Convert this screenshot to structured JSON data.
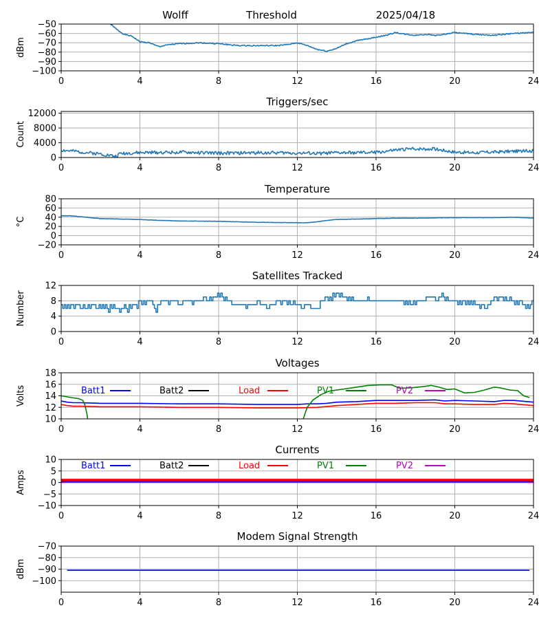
{
  "header": {
    "station": "Wolff",
    "label": "Threshold",
    "date": "2025/04/18"
  },
  "colors": {
    "series_blue": "#1f77b4",
    "batt1": "#0000ff",
    "batt2": "#000000",
    "load": "#ff0000",
    "pv1": "#008000",
    "pv2": "#bf00bf",
    "grid": "#b0b0b0"
  },
  "chart_data": [
    {
      "type": "line",
      "title": "",
      "xlabel": "",
      "ylabel": "dBm",
      "xlim": [
        0,
        24
      ],
      "ylim": [
        -100,
        -50
      ],
      "xticks": [
        0,
        4,
        8,
        12,
        16,
        20,
        24
      ],
      "yticks": [
        -100,
        -90,
        -80,
        -70,
        -60,
        -50
      ],
      "grid": true,
      "series": [
        {
          "color": "#1f77b4",
          "noise": 0.6,
          "seed": 1,
          "x": [
            2.5,
            2.9,
            3.2,
            3.6,
            4.0,
            4.5,
            4.8,
            5.0,
            5.5,
            6.0,
            7.0,
            8.0,
            8.5,
            9.0,
            10.0,
            11.0,
            11.5,
            12.0,
            12.5,
            13.0,
            13.5,
            14.0,
            14.5,
            15.0,
            15.5,
            16.0,
            16.5,
            17.0,
            17.5,
            18.0,
            18.5,
            19.0,
            19.5,
            20.0,
            21.0,
            22.0,
            22.5,
            23.0,
            24.0
          ],
          "y": [
            -50,
            -57,
            -61,
            -63,
            -69,
            -70,
            -73,
            -74,
            -72,
            -71,
            -70,
            -71,
            -72,
            -73,
            -73,
            -73,
            -72,
            -70,
            -73,
            -77,
            -79,
            -76,
            -71,
            -68,
            -66,
            -64,
            -62,
            -59,
            -61,
            -62,
            -61,
            -62,
            -61,
            -59,
            -61,
            -62,
            -61,
            -60,
            -59
          ]
        }
      ]
    },
    {
      "type": "line",
      "title": "Triggers/sec",
      "xlabel": "",
      "ylabel": "Count",
      "xlim": [
        0,
        24
      ],
      "ylim": [
        0,
        12500
      ],
      "xticks": [
        0,
        4,
        8,
        12,
        16,
        20,
        24
      ],
      "yticks": [
        0,
        4000,
        8000,
        12000
      ],
      "grid": true,
      "series": [
        {
          "color": "#1f77b4",
          "noise": 450,
          "seed": 2,
          "x": [
            0,
            1,
            2,
            2.8,
            3,
            4,
            5,
            6,
            7,
            8,
            9,
            10,
            11,
            12,
            13,
            14,
            15,
            16,
            17,
            18,
            19,
            20,
            21,
            22,
            23,
            24
          ],
          "y": [
            2000,
            1500,
            1000,
            300,
            1100,
            1300,
            1400,
            1400,
            1300,
            1200,
            1200,
            1300,
            1300,
            1200,
            1100,
            1300,
            1300,
            1400,
            2000,
            2400,
            2300,
            1500,
            1300,
            1500,
            1700,
            1800
          ]
        }
      ]
    },
    {
      "type": "line",
      "title": "Temperature",
      "xlabel": "",
      "ylabel": "°C",
      "xlim": [
        0,
        24
      ],
      "ylim": [
        -20,
        80
      ],
      "xticks": [
        0,
        4,
        8,
        12,
        16,
        20,
        24
      ],
      "yticks": [
        -20,
        0,
        20,
        40,
        60,
        80
      ],
      "grid": true,
      "series": [
        {
          "color": "#1f77b4",
          "noise": 0.3,
          "seed": 3,
          "x": [
            0,
            0.5,
            1,
            1.5,
            2,
            3,
            4,
            5,
            6,
            8,
            10,
            12,
            12.5,
            13,
            13.5,
            14,
            15,
            16,
            17,
            18,
            20,
            22,
            23,
            24
          ],
          "y": [
            43,
            43,
            41,
            39,
            37,
            36,
            35,
            33,
            32,
            31,
            29,
            28,
            28,
            30,
            33,
            35,
            36,
            37,
            38,
            38,
            39,
            39,
            40,
            38
          ]
        }
      ]
    },
    {
      "type": "line",
      "title": "Satellites Tracked",
      "xlabel": "",
      "ylabel": "Number",
      "xlim": [
        0,
        24
      ],
      "ylim": [
        0,
        12
      ],
      "xticks": [
        0,
        4,
        8,
        12,
        16,
        20,
        24
      ],
      "yticks": [
        0,
        4,
        8,
        12
      ],
      "grid": true,
      "series": [
        {
          "color": "#1f77b4",
          "step": true,
          "seed": 4,
          "y": [
            7,
            6,
            7,
            6,
            7,
            6,
            7,
            7,
            6,
            7,
            7,
            7,
            6,
            6,
            7,
            6,
            6,
            7,
            6,
            7,
            7,
            7,
            6,
            6,
            7,
            6,
            7,
            6,
            7,
            6,
            5,
            7,
            6,
            7,
            6,
            6,
            6,
            5,
            6,
            6,
            7,
            6,
            5,
            7,
            6,
            7,
            7,
            7,
            6,
            8,
            8,
            7,
            8,
            7,
            8,
            8,
            8,
            8,
            7,
            6,
            5,
            7,
            7,
            8,
            8,
            8,
            8,
            8,
            7,
            8,
            8,
            8,
            8,
            8,
            7,
            7,
            7,
            8,
            8,
            8,
            8,
            8,
            8,
            7,
            8,
            8,
            8,
            8,
            8,
            8,
            9,
            9,
            8,
            8,
            9,
            8,
            9,
            9,
            9,
            10,
            9,
            10,
            9,
            8,
            9,
            8,
            8,
            8,
            7,
            7,
            7,
            7,
            7,
            7,
            7,
            7,
            7,
            6,
            7,
            7,
            7,
            7,
            7,
            7,
            8,
            8,
            7,
            7,
            7,
            7,
            6,
            6,
            7,
            7,
            7,
            7,
            8,
            8,
            8,
            7,
            8,
            8,
            8,
            7,
            8,
            7,
            7,
            8,
            7,
            7,
            7,
            7,
            6,
            6,
            7,
            7,
            7,
            7,
            6,
            6,
            6,
            6,
            6,
            6,
            8,
            8,
            8,
            9,
            9,
            8,
            9,
            8,
            10,
            9,
            10,
            10,
            9,
            10,
            9,
            9,
            9,
            8,
            9,
            8,
            9,
            8,
            8,
            8,
            8,
            8,
            8,
            8,
            8,
            8,
            9,
            8,
            8,
            8,
            8,
            8,
            8,
            8,
            8,
            8,
            8,
            8,
            8,
            8,
            8,
            8,
            8,
            8,
            8,
            8,
            8,
            8,
            8,
            7,
            8,
            7,
            8,
            7,
            7,
            8,
            7,
            8,
            8,
            8,
            8,
            8,
            8,
            9,
            9,
            9,
            9,
            9,
            9,
            8,
            8,
            9,
            9,
            10,
            9,
            8,
            9,
            8,
            8,
            8,
            8,
            8,
            8,
            7,
            8,
            7,
            8,
            8,
            7,
            8,
            7,
            8,
            7,
            8,
            7,
            7,
            7,
            6,
            7,
            7,
            6,
            6,
            7,
            7,
            8,
            8,
            9,
            9,
            8,
            9,
            9,
            9,
            8,
            9,
            8,
            8,
            9,
            8,
            8,
            7,
            8,
            7,
            8,
            8,
            7,
            7,
            6,
            7,
            6,
            7,
            8
          ]
        }
      ]
    },
    {
      "type": "line",
      "title": "Voltages",
      "xlabel": "",
      "ylabel": "Volts",
      "xlim": [
        0,
        24
      ],
      "ylim": [
        10,
        18
      ],
      "xticks": [
        0,
        4,
        8,
        12,
        16,
        20,
        24
      ],
      "yticks": [
        10,
        12,
        14,
        16,
        18
      ],
      "grid": true,
      "legend": [
        {
          "name": "Batt1",
          "color": "#0000ff"
        },
        {
          "name": "Batt2",
          "color": "#000000"
        },
        {
          "name": "Load",
          "color": "#ff0000"
        },
        {
          "name": "PV1",
          "color": "#008000"
        },
        {
          "name": "PV2",
          "color": "#bf00bf"
        }
      ],
      "series": [
        {
          "name": "Batt1",
          "color": "#0000ff",
          "x": [
            0,
            0.3,
            0.6,
            1,
            2,
            4,
            6,
            8,
            10,
            12,
            12.5,
            13,
            13.5,
            14,
            15,
            16,
            17,
            18,
            19,
            19.5,
            20,
            21,
            22,
            22.5,
            23,
            24
          ],
          "y": [
            13.1,
            12.9,
            12.8,
            12.8,
            12.7,
            12.7,
            12.6,
            12.6,
            12.5,
            12.5,
            12.6,
            12.6,
            12.7,
            12.9,
            13.0,
            13.2,
            13.2,
            13.2,
            13.3,
            13.1,
            13.2,
            13.1,
            13.0,
            13.2,
            13.2,
            12.9
          ]
        },
        {
          "name": "Load",
          "color": "#ff0000",
          "x": [
            0,
            0.3,
            0.6,
            1,
            2,
            4,
            6,
            8,
            10,
            12,
            13,
            14,
            15,
            16,
            17,
            18,
            19,
            19.5,
            20,
            21,
            22,
            22.5,
            23,
            24
          ],
          "y": [
            12.5,
            12.3,
            12.2,
            12.2,
            12.1,
            12.1,
            12.0,
            12.0,
            11.9,
            11.9,
            12.0,
            12.3,
            12.5,
            12.7,
            12.7,
            12.8,
            12.8,
            12.6,
            12.6,
            12.5,
            12.5,
            12.7,
            12.6,
            12.3
          ]
        },
        {
          "name": "PV1",
          "color": "#008000",
          "segments": [
            {
              "x": [
                0,
                0.5,
                0.9,
                1.1,
                1.2,
                1.3,
                1.35
              ],
              "y": [
                14.0,
                13.7,
                13.5,
                13.2,
                12.5,
                11.0,
                10.0
              ]
            },
            {
              "x": [
                12.3,
                12.5,
                12.8,
                13.2,
                13.6,
                14.0,
                14.4,
                15.0,
                15.6,
                16.2,
                16.8,
                17.2,
                17.8,
                18.4,
                18.8,
                19.2,
                19.6,
                20.0,
                20.5,
                21.0,
                21.5,
                22.0,
                22.3,
                22.8,
                23.2,
                23.5,
                23.8
              ],
              "y": [
                10.0,
                12.0,
                13.3,
                14.2,
                14.8,
                15.0,
                15.2,
                15.5,
                15.8,
                15.9,
                15.9,
                15.3,
                15.4,
                15.6,
                15.8,
                15.5,
                15.1,
                15.2,
                14.5,
                14.6,
                15.0,
                15.5,
                15.4,
                15.0,
                14.9,
                14.0,
                13.7
              ]
            }
          ]
        }
      ]
    },
    {
      "type": "line",
      "title": "Currents",
      "xlabel": "",
      "ylabel": "Amps",
      "xlim": [
        0,
        24
      ],
      "ylim": [
        -10,
        10
      ],
      "xticks": [
        0,
        4,
        8,
        12,
        16,
        20,
        24
      ],
      "yticks": [
        -10,
        -5,
        0,
        5,
        10
      ],
      "grid": true,
      "legend": [
        {
          "name": "Batt1",
          "color": "#0000ff"
        },
        {
          "name": "Batt2",
          "color": "#000000"
        },
        {
          "name": "Load",
          "color": "#ff0000"
        },
        {
          "name": "PV1",
          "color": "#008000"
        },
        {
          "name": "PV2",
          "color": "#bf00bf"
        }
      ],
      "series": [
        {
          "name": "Load",
          "color": "#ff0000",
          "width": 4,
          "x": [
            0,
            24
          ],
          "y": [
            1.0,
            1.0
          ]
        },
        {
          "name": "Batt1",
          "color": "#0000ff",
          "width": 1.5,
          "x": [
            0,
            24
          ],
          "y": [
            0.3,
            0.3
          ]
        },
        {
          "name": "PV2",
          "color": "#bf00bf",
          "width": 1.5,
          "x": [
            0,
            24
          ],
          "y": [
            0.0,
            0.0
          ]
        }
      ]
    },
    {
      "type": "line",
      "title": "Modem Signal Strength",
      "xlabel": "",
      "ylabel": "dBm",
      "xlim": [
        0,
        24
      ],
      "ylim": [
        -110,
        -70
      ],
      "xticks": [
        0,
        4,
        8,
        12,
        16,
        20,
        24
      ],
      "yticks": [
        -100,
        -90,
        -80,
        -70
      ],
      "grid": true,
      "series": [
        {
          "color": "#0000ff",
          "x": [
            0.3,
            23.8
          ],
          "y": [
            -91,
            -91
          ]
        }
      ]
    }
  ]
}
